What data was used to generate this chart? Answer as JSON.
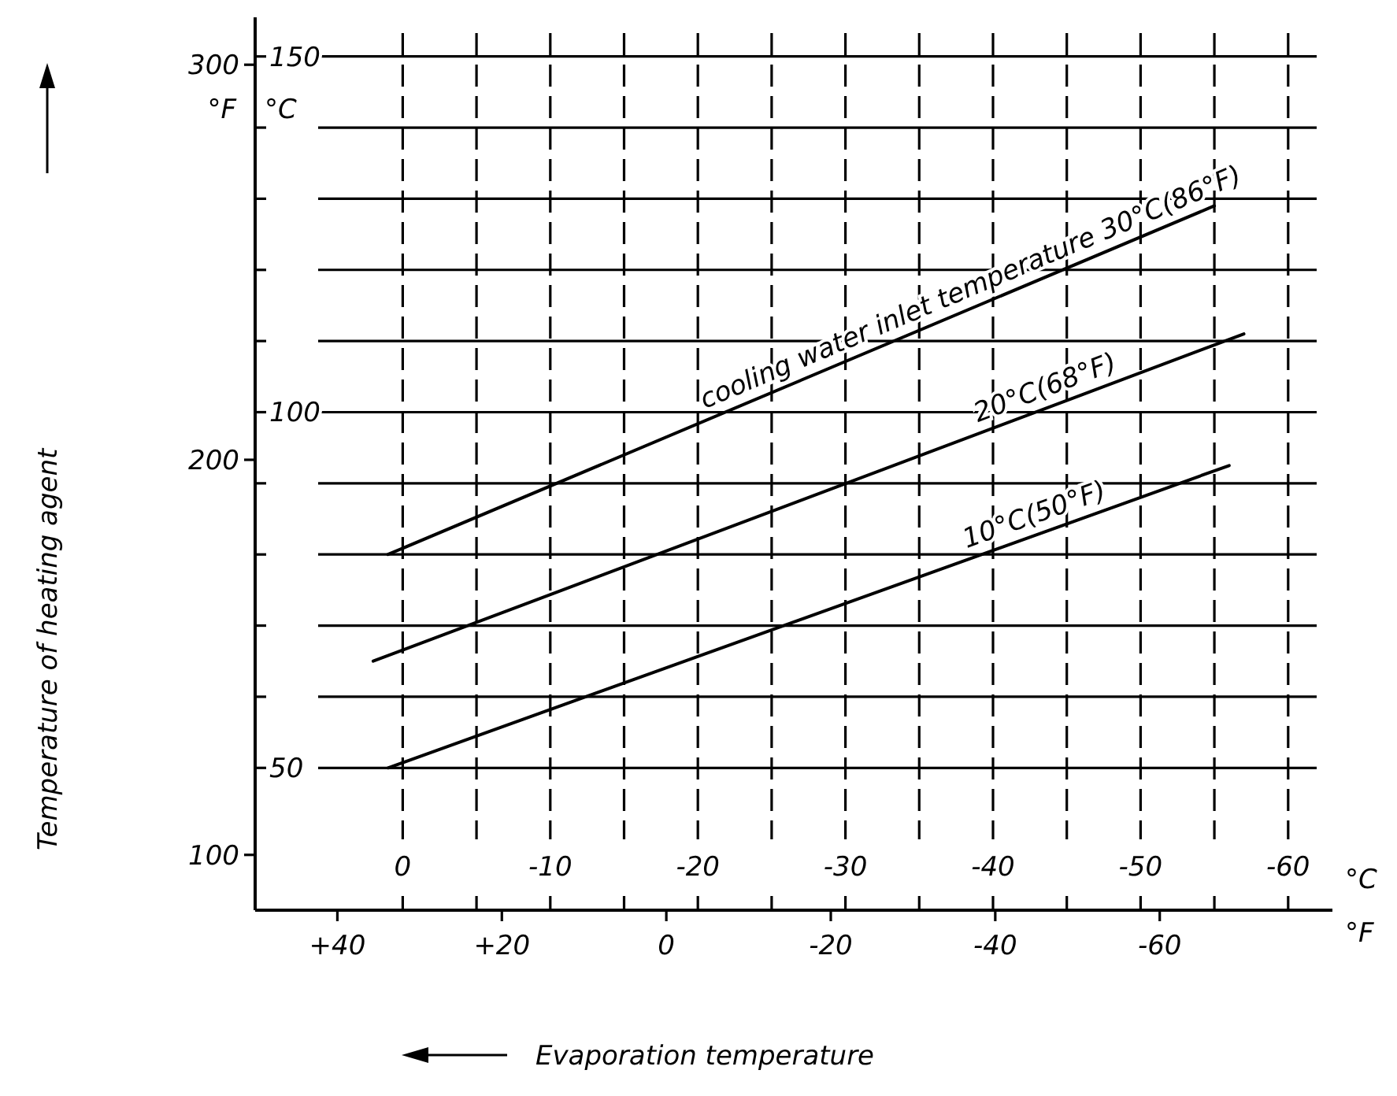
{
  "chart_data": {
    "type": "line",
    "xlabel": "Evaporation temperature",
    "ylabel": "Temperature of heating agent",
    "annotations": [
      "°F",
      "°C",
      "°C",
      "°F"
    ],
    "xlim": [
      10,
      -63
    ],
    "xticks": [
      0,
      {
        "value": -5,
        "label": null
      },
      -10,
      {
        "value": -15,
        "label": null
      },
      -20,
      {
        "value": -25,
        "label": null
      },
      -30,
      {
        "value": -35,
        "label": null
      },
      -40,
      {
        "value": -45,
        "label": null
      },
      -50,
      {
        "value": -55,
        "label": null
      },
      -60
    ],
    "x2lim": [
      50,
      -81
    ],
    "x2ticks": [
      {
        "value": 40,
        "label": "+40"
      },
      {
        "value": 20,
        "label": "+20"
      },
      0,
      -20,
      -40,
      -60
    ],
    "ylim": [
      86,
      312
    ],
    "yticks": [
      100,
      200,
      300
    ],
    "y2lim": [
      30,
      155.5
    ],
    "y2ticks": [
      50,
      {
        "value": 60,
        "label": null
      },
      {
        "value": 70,
        "label": null
      },
      {
        "value": 80,
        "label": null
      },
      {
        "value": 90,
        "label": null
      },
      100,
      {
        "value": 110,
        "label": null
      },
      {
        "value": 120,
        "label": null
      },
      {
        "value": 130,
        "label": null
      },
      {
        "value": 140,
        "label": null
      },
      150
    ],
    "grid": true,
    "series": [
      {
        "name": "cooling water  inlet temperature 30°C(86°F)",
        "color": "#000000",
        "axis": "y2",
        "x": [
          1,
          -55
        ],
        "values": [
          80,
          129
        ]
      },
      {
        "name": "20°C(68°F)",
        "color": "#000000",
        "axis": "y2",
        "x": [
          2,
          -57
        ],
        "values": [
          65,
          111
        ]
      },
      {
        "name": "10°C(50°F)",
        "color": "#000000",
        "axis": "y2",
        "x": [
          1,
          -56
        ],
        "values": [
          50,
          92.5
        ]
      }
    ]
  }
}
